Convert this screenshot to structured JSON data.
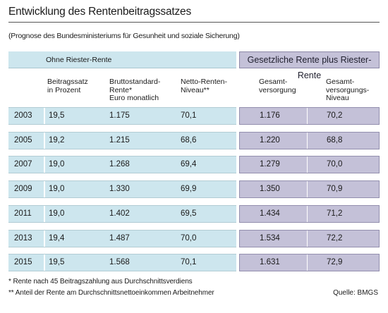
{
  "title": "Entwicklung des Rentenbeitragssatzes",
  "subtitle": "(Prognose des Bundesministeriums für Gesunheit und soziale Sicherung)",
  "bands": {
    "left": "Ohne Riester-Rente",
    "right": "Gesetzliche Rente plus Riester-Rente"
  },
  "headers": {
    "beitragssatz": "Beitragssatz\nin Prozent",
    "brutto": "Bruttostandard-\nRente*\nEuro monatlich",
    "netto": "Netto-Renten-\nNiveau**",
    "gesamt": "Gesamt-\nversorgung",
    "gesamt_niveau": "Gesamt-\nversorgungs-\nNiveau"
  },
  "rows": [
    {
      "year": "2003",
      "beitrag": "19,5",
      "brutto": "1.175",
      "netto": "70,1",
      "gesamt": "1.176",
      "niveau": "70,2"
    },
    {
      "year": "2005",
      "beitrag": "19,2",
      "brutto": "1.215",
      "netto": "68,6",
      "gesamt": "1.220",
      "niveau": "68,8"
    },
    {
      "year": "2007",
      "beitrag": "19,0",
      "brutto": "1.268",
      "netto": "69,4",
      "gesamt": "1.279",
      "niveau": "70,0"
    },
    {
      "year": "2009",
      "beitrag": "19,0",
      "brutto": "1.330",
      "netto": "69,9",
      "gesamt": "1.350",
      "niveau": "70,9"
    },
    {
      "year": "2011",
      "beitrag": "19,0",
      "brutto": "1.402",
      "netto": "69,5",
      "gesamt": "1.434",
      "niveau": "71,2"
    },
    {
      "year": "2013",
      "beitrag": "19,4",
      "brutto": "1.487",
      "netto": "70,0",
      "gesamt": "1.534",
      "niveau": "72,2"
    },
    {
      "year": "2015",
      "beitrag": "19,5",
      "brutto": "1.568",
      "netto": "70,1",
      "gesamt": "1.631",
      "niveau": "72,9"
    }
  ],
  "footnotes": [
    "* Rente nach 45 Beitragszahlung aus Durchschnittsverdiens",
    "** Anteil der Rente am Durchschnittsnettoeinkommen Arbeitnehmer"
  ],
  "source": "Quelle: BMGS"
}
